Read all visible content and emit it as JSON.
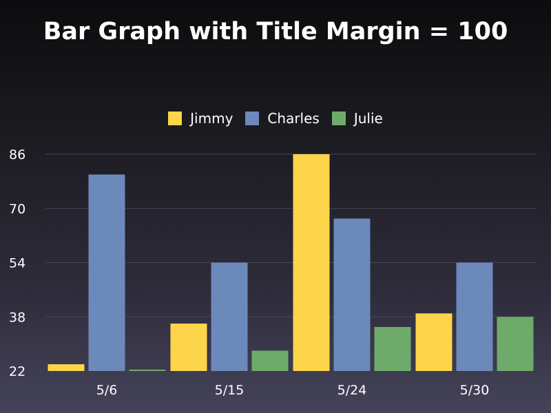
{
  "chart_data": {
    "type": "bar",
    "title": "Bar Graph with Title Margin = 100",
    "categories": [
      "5/6",
      "5/15",
      "5/24",
      "5/30"
    ],
    "series": [
      {
        "name": "Jimmy",
        "color": "#fdd54b",
        "values": [
          24,
          36,
          86,
          39
        ]
      },
      {
        "name": "Charles",
        "color": "#6b89bb",
        "values": [
          80,
          54,
          67,
          54
        ]
      },
      {
        "name": "Julie",
        "color": "#6eab6a",
        "values": [
          22,
          28,
          35,
          38
        ]
      }
    ],
    "yticks": [
      "22",
      "38",
      "54",
      "70",
      "86"
    ],
    "ylim": [
      22,
      86
    ],
    "grid": true,
    "legend_position": "top"
  }
}
